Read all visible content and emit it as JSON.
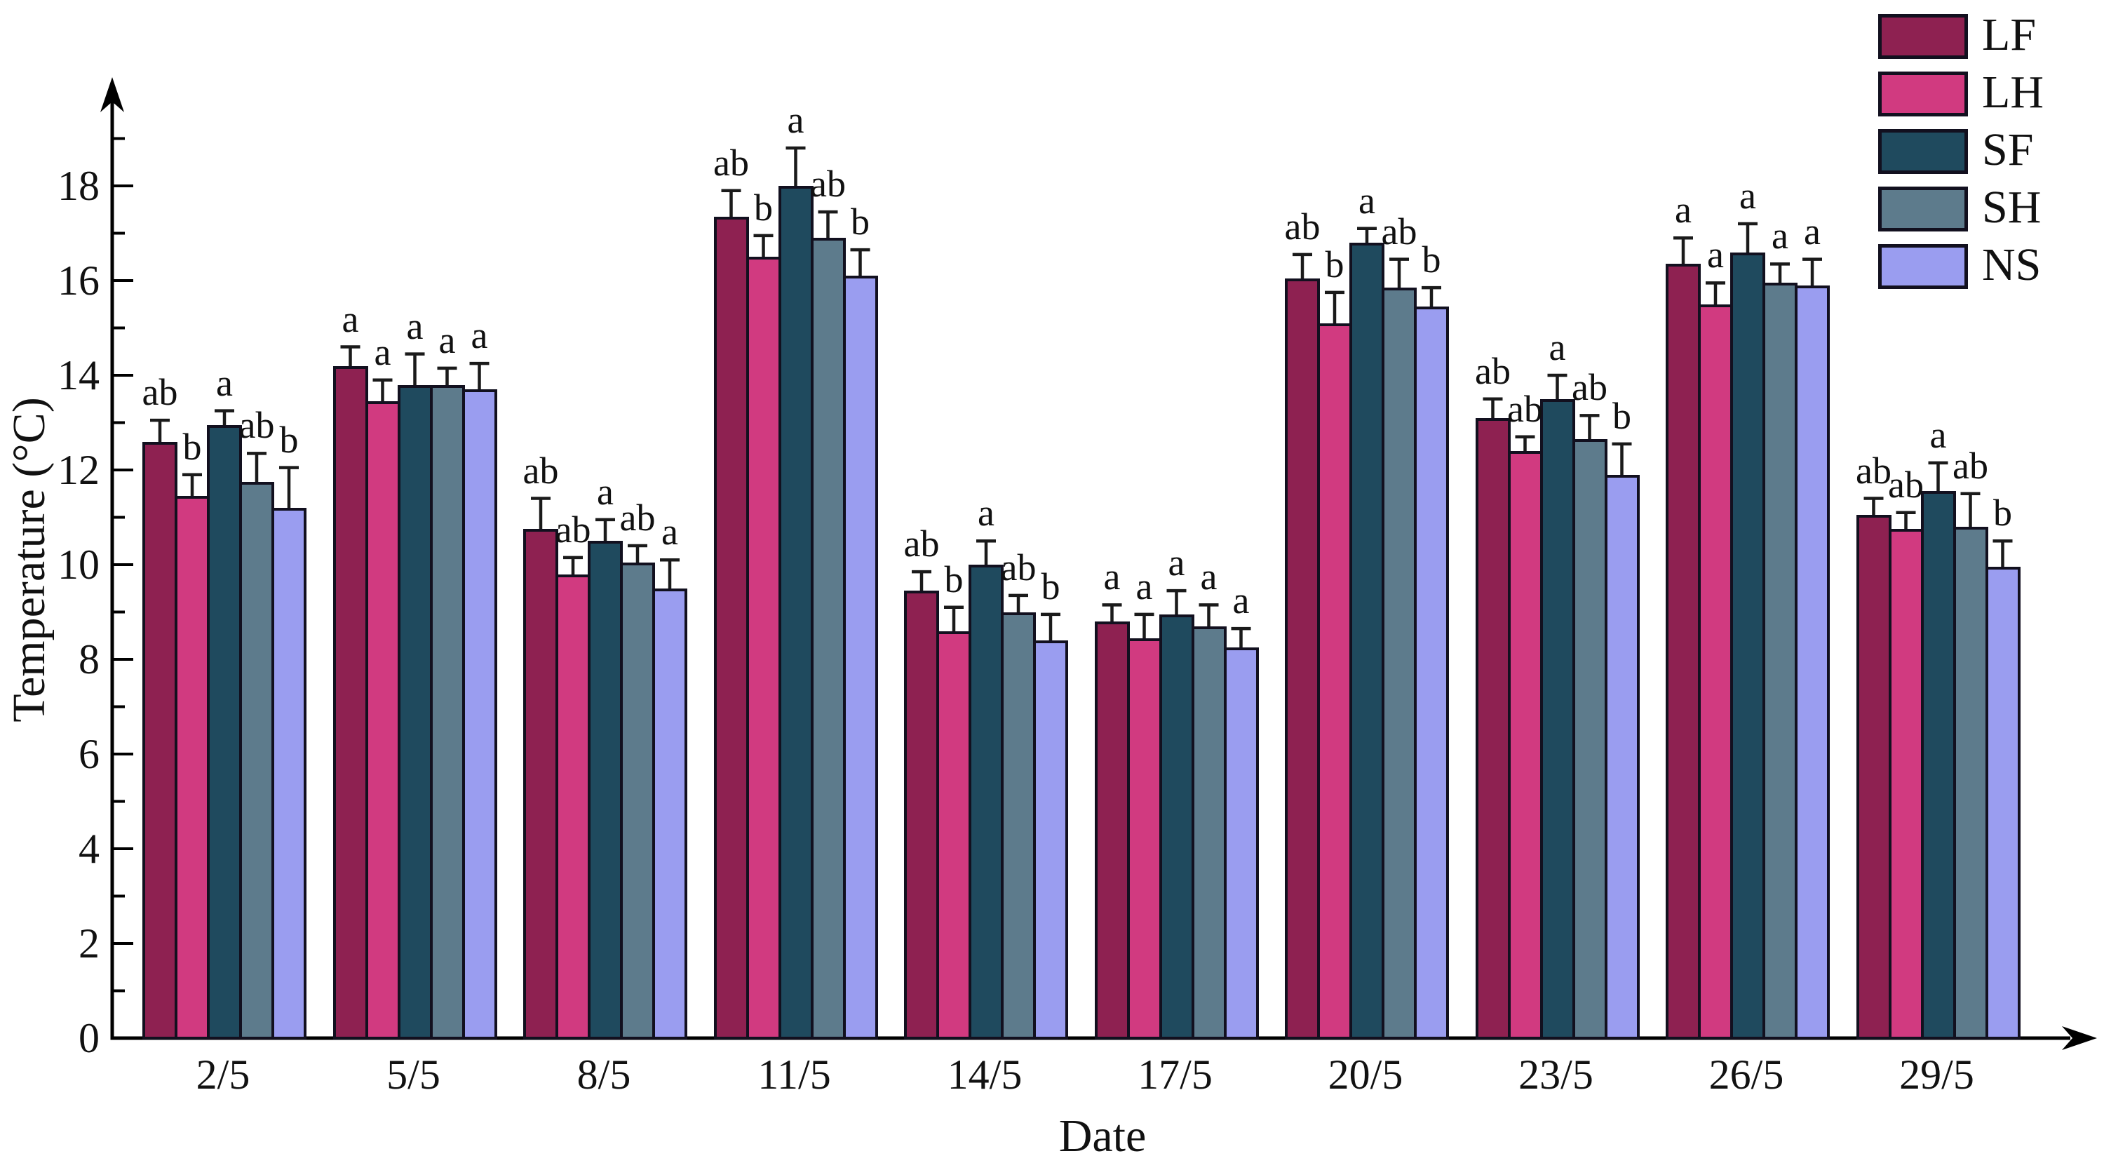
{
  "figure": {
    "background": "#ffffff",
    "axis_color": "#000000",
    "bar_border_color": "#12101f",
    "error_bar_color": "#1a1a1a"
  },
  "chart_data": {
    "type": "bar",
    "title": "",
    "xlabel": "Date",
    "ylabel": "Temperature (°C)",
    "ylim": [
      0,
      20
    ],
    "yticks": [
      0,
      2,
      4,
      6,
      8,
      10,
      12,
      14,
      16,
      18
    ],
    "ytick_minor_step": 1,
    "grid": false,
    "legend_position": "top-right",
    "error_bars": true,
    "categories": [
      "2/5",
      "5/5",
      "8/5",
      "11/5",
      "14/5",
      "17/5",
      "20/5",
      "23/5",
      "26/5",
      "29/5"
    ],
    "series": [
      {
        "name": "LF",
        "color": "#8e2151",
        "values": [
          12.6,
          14.2,
          10.75,
          17.35,
          9.45,
          8.8,
          16.05,
          13.1,
          16.35,
          11.05
        ],
        "errors": [
          0.45,
          0.4,
          0.65,
          0.55,
          0.4,
          0.35,
          0.5,
          0.4,
          0.55,
          0.35
        ],
        "letters": [
          "ab",
          "a",
          "ab",
          "ab",
          "ab",
          "a",
          "ab",
          "ab",
          "a",
          "ab"
        ]
      },
      {
        "name": "LH",
        "color": "#d13a80",
        "values": [
          11.45,
          13.45,
          9.8,
          16.5,
          8.6,
          8.45,
          15.1,
          12.4,
          15.5,
          10.75
        ],
        "errors": [
          0.45,
          0.45,
          0.35,
          0.45,
          0.5,
          0.5,
          0.65,
          0.3,
          0.45,
          0.35
        ],
        "letters": [
          "b",
          "a",
          "ab",
          "b",
          "b",
          "a",
          "b",
          "ab",
          "a",
          "ab"
        ]
      },
      {
        "name": "SF",
        "color": "#1f4a5e",
        "values": [
          12.95,
          13.8,
          10.5,
          18.0,
          10.0,
          8.95,
          16.8,
          13.5,
          16.6,
          11.55
        ],
        "errors": [
          0.3,
          0.65,
          0.45,
          0.8,
          0.5,
          0.5,
          0.3,
          0.5,
          0.6,
          0.6
        ],
        "letters": [
          "a",
          "a",
          "a",
          "a",
          "a",
          "a",
          "a",
          "a",
          "a",
          "a"
        ]
      },
      {
        "name": "SH",
        "color": "#5d7b8c",
        "values": [
          11.75,
          13.8,
          10.05,
          16.9,
          9.0,
          8.7,
          15.85,
          12.65,
          15.95,
          10.8
        ],
        "errors": [
          0.6,
          0.35,
          0.35,
          0.55,
          0.35,
          0.45,
          0.6,
          0.5,
          0.4,
          0.7
        ],
        "letters": [
          "ab",
          "a",
          "ab",
          "ab",
          "ab",
          "a",
          "ab",
          "ab",
          "a",
          "ab"
        ]
      },
      {
        "name": "NS",
        "color": "#9a9df0",
        "values": [
          11.2,
          13.7,
          9.5,
          16.1,
          8.4,
          8.25,
          15.45,
          11.9,
          15.9,
          9.95
        ],
        "errors": [
          0.85,
          0.55,
          0.6,
          0.55,
          0.55,
          0.4,
          0.4,
          0.65,
          0.55,
          0.55
        ],
        "letters": [
          "b",
          "a",
          "a",
          "b",
          "b",
          "a",
          "b",
          "b",
          "a",
          "b"
        ]
      }
    ]
  }
}
